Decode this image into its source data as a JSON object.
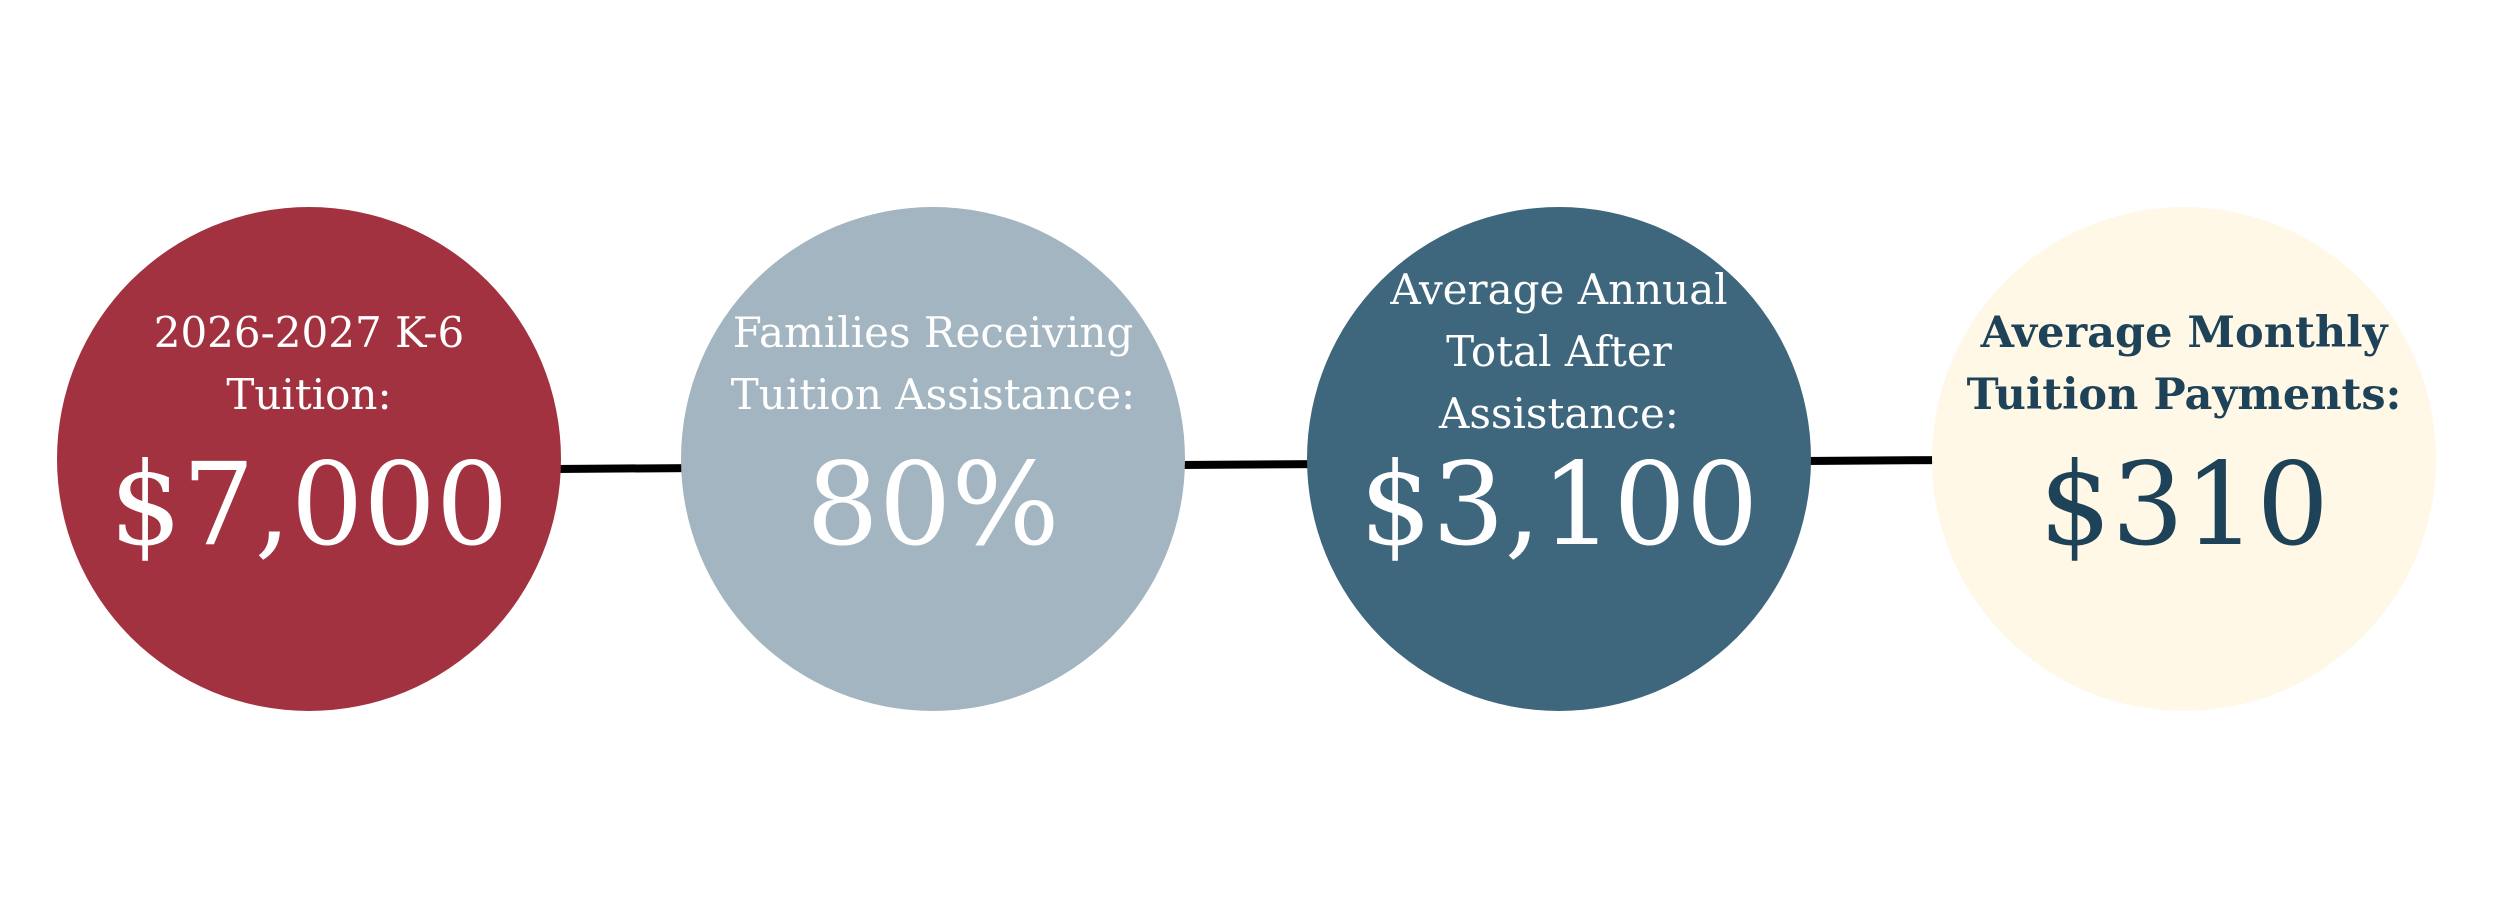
{
  "stats": [
    {
      "label_lines": [
        "2026-2027 K-6",
        "Tuition:"
      ],
      "value": "$7,000",
      "fill": "#a2323f",
      "text_color": "#ffffff"
    },
    {
      "label_lines": [
        "Families Receiving",
        "Tuition Assistance:"
      ],
      "value": "80%",
      "fill": "#a2b5c0",
      "text_color": "#ffffff"
    },
    {
      "label_lines": [
        "Average Annual",
        "Total After",
        "Assistance:"
      ],
      "value": "$3,100",
      "fill": "#3e667c",
      "text_color": "#ffffff"
    },
    {
      "label_lines": [
        "Average Monthly",
        "Tuition Payments:"
      ],
      "value": "$310",
      "fill": "#fff8e6",
      "text_color": "#1e4258"
    }
  ]
}
